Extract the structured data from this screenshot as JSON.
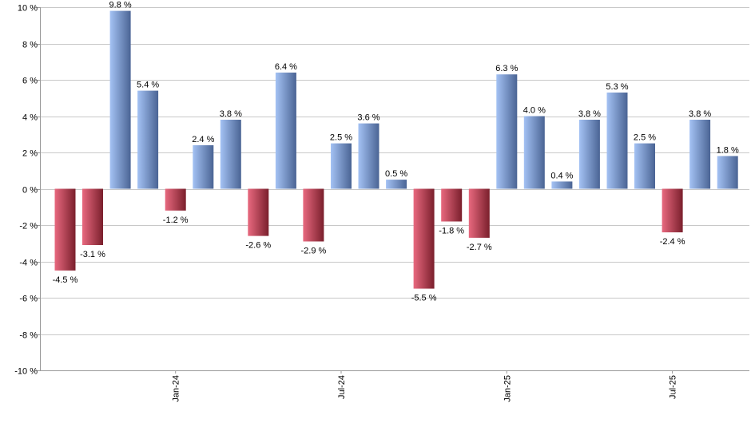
{
  "chart_data": {
    "type": "bar",
    "title": "",
    "xlabel": "",
    "ylabel": "",
    "ylim": [
      -10,
      10
    ],
    "y_ticks": [
      10,
      8,
      6,
      4,
      2,
      0,
      -2,
      -4,
      -6,
      -8,
      -10
    ],
    "y_tick_suffix": " %",
    "grid": true,
    "legend": "none",
    "values": [
      -4.5,
      -3.1,
      9.8,
      5.4,
      -1.2,
      2.4,
      3.8,
      -2.6,
      6.4,
      -2.9,
      2.5,
      3.6,
      0.5,
      -5.5,
      -1.8,
      -2.7,
      6.3,
      4.0,
      0.4,
      3.8,
      5.3,
      2.5,
      -2.4,
      3.8,
      1.8
    ],
    "value_labels": [
      "-4.5 %",
      "-3.1 %",
      "9.8 %",
      "5.4 %",
      "-1.2 %",
      "2.4 %",
      "3.8 %",
      "-2.6 %",
      "6.4 %",
      "-2.9 %",
      "2.5 %",
      "3.6 %",
      "0.5 %",
      "-5.5 %",
      "-1.8 %",
      "-2.7 %",
      "6.3 %",
      "4.0 %",
      "0.4 %",
      "3.8 %",
      "5.3 %",
      "2.5 %",
      "-2.4 %",
      "3.8 %",
      "1.8 %"
    ],
    "x_tick_labels": [
      {
        "label": "Jan-24",
        "bar_index": 4
      },
      {
        "label": "Jul-24",
        "bar_index": 10
      },
      {
        "label": "Jan-25",
        "bar_index": 16
      },
      {
        "label": "Jul-25",
        "bar_index": 22
      }
    ],
    "colors": {
      "positive_light": "#a4c2f4",
      "positive_dark": "#4a6494",
      "negative_light": "#e8697f",
      "negative_dark": "#7a1f2c",
      "grid": "#c8c8c8"
    }
  }
}
